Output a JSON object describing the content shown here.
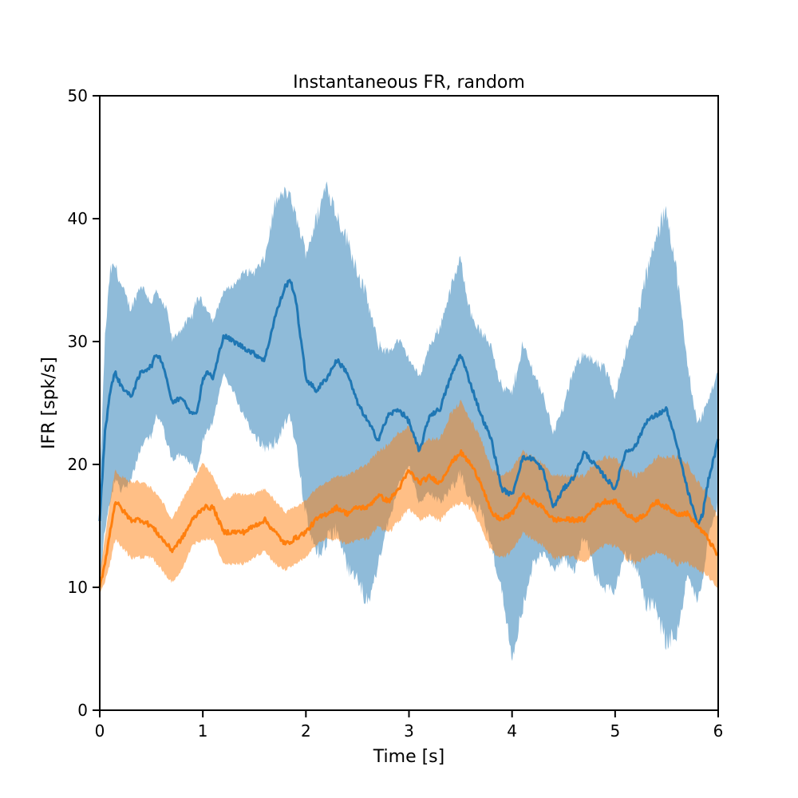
{
  "chart_data": {
    "type": "line",
    "title": "Instantaneous FR, random",
    "xlabel": "Time [s]",
    "ylabel": "IFR [spk/s]",
    "xlim": [
      0,
      6
    ],
    "ylim": [
      0,
      50
    ],
    "xticks": [
      0,
      1,
      2,
      3,
      4,
      5,
      6
    ],
    "yticks": [
      0,
      10,
      20,
      30,
      40,
      50
    ],
    "xtick_labels": [
      "0",
      "1",
      "2",
      "3",
      "4",
      "5",
      "6"
    ],
    "ytick_labels": [
      "0",
      "10",
      "20",
      "30",
      "40",
      "50"
    ],
    "grid": false,
    "legend": "none",
    "series": [
      {
        "color": "#1f77b4",
        "band_color": "#1f77b4",
        "band_opacity": 0.5,
        "x": [
          0,
          0.05,
          0.1,
          0.15,
          0.2,
          0.3,
          0.4,
          0.5,
          0.55,
          0.6,
          0.65,
          0.7,
          0.8,
          0.9,
          0.95,
          1.0,
          1.05,
          1.1,
          1.2,
          1.3,
          1.4,
          1.5,
          1.6,
          1.7,
          1.8,
          1.85,
          1.9,
          2.0,
          2.1,
          2.2,
          2.3,
          2.4,
          2.5,
          2.6,
          2.7,
          2.8,
          2.9,
          3.0,
          3.1,
          3.2,
          3.3,
          3.4,
          3.5,
          3.6,
          3.7,
          3.8,
          3.9,
          4.0,
          4.1,
          4.2,
          4.3,
          4.4,
          4.5,
          4.6,
          4.7,
          4.8,
          4.9,
          5.0,
          5.1,
          5.2,
          5.3,
          5.4,
          5.5,
          5.6,
          5.7,
          5.8,
          5.85,
          5.9,
          6.0
        ],
        "mean": [
          15.5,
          22.5,
          26.0,
          27.5,
          26.5,
          25.5,
          27.5,
          28.0,
          29.0,
          28.5,
          27.0,
          25.0,
          25.5,
          24.0,
          24.5,
          27.0,
          27.5,
          27.0,
          30.5,
          30.0,
          29.5,
          29.0,
          28.5,
          32.0,
          34.5,
          35.0,
          33.5,
          27.0,
          26.0,
          27.0,
          28.5,
          27.5,
          25.0,
          23.5,
          22.0,
          24.0,
          24.5,
          23.5,
          21.0,
          24.0,
          24.5,
          27.0,
          29.0,
          26.5,
          24.0,
          22.0,
          18.0,
          17.5,
          20.5,
          20.5,
          19.5,
          16.5,
          18.0,
          19.0,
          21.0,
          20.0,
          19.0,
          18.0,
          21.0,
          21.5,
          23.5,
          24.0,
          24.5,
          21.5,
          18.0,
          15.0,
          16.0,
          18.5,
          22.0
        ],
        "lower": [
          10.0,
          15.0,
          17.0,
          19.0,
          18.0,
          19.0,
          21.5,
          22.5,
          24.0,
          23.5,
          22.0,
          20.5,
          21.0,
          20.0,
          19.5,
          22.0,
          23.0,
          23.5,
          27.5,
          26.0,
          24.0,
          22.5,
          21.5,
          22.0,
          23.5,
          24.0,
          22.0,
          16.0,
          13.0,
          14.0,
          15.0,
          12.0,
          11.0,
          9.0,
          12.0,
          15.5,
          18.5,
          20.0,
          17.0,
          18.0,
          17.0,
          18.0,
          19.5,
          17.0,
          16.5,
          13.5,
          10.0,
          4.5,
          8.5,
          12.0,
          13.0,
          11.5,
          12.5,
          11.5,
          14.5,
          11.5,
          10.0,
          10.0,
          13.0,
          12.0,
          9.0,
          8.5,
          6.0,
          6.5,
          11.0,
          9.0,
          11.0,
          14.0,
          17.0
        ],
        "upper": [
          18.0,
          30.0,
          35.5,
          36.0,
          34.5,
          32.5,
          34.5,
          33.0,
          34.0,
          33.0,
          32.5,
          30.0,
          31.0,
          32.0,
          33.5,
          33.0,
          32.5,
          31.5,
          34.0,
          34.5,
          35.5,
          35.5,
          36.5,
          41.0,
          42.0,
          41.5,
          40.0,
          37.0,
          39.5,
          42.5,
          40.0,
          38.0,
          35.5,
          33.0,
          29.5,
          29.0,
          30.0,
          28.5,
          27.0,
          29.5,
          31.0,
          34.0,
          36.5,
          32.0,
          30.5,
          29.5,
          26.0,
          25.5,
          29.5,
          27.5,
          25.5,
          22.5,
          24.5,
          27.5,
          29.0,
          28.0,
          27.5,
          25.5,
          29.0,
          31.0,
          35.0,
          38.0,
          40.5,
          35.0,
          28.0,
          23.0,
          24.0,
          25.0,
          27.5
        ]
      },
      {
        "color": "#ff7f0e",
        "band_color": "#ff7f0e",
        "band_opacity": 0.5,
        "x": [
          0,
          0.05,
          0.1,
          0.15,
          0.2,
          0.3,
          0.4,
          0.5,
          0.6,
          0.7,
          0.8,
          0.9,
          1.0,
          1.1,
          1.2,
          1.3,
          1.4,
          1.5,
          1.6,
          1.7,
          1.8,
          1.9,
          2.0,
          2.1,
          2.2,
          2.3,
          2.4,
          2.5,
          2.6,
          2.7,
          2.8,
          2.9,
          3.0,
          3.1,
          3.2,
          3.3,
          3.4,
          3.5,
          3.6,
          3.7,
          3.8,
          3.9,
          4.0,
          4.1,
          4.2,
          4.3,
          4.4,
          4.5,
          4.6,
          4.7,
          4.8,
          4.9,
          5.0,
          5.1,
          5.2,
          5.3,
          5.4,
          5.5,
          5.6,
          5.7,
          5.8,
          5.9,
          6.0
        ],
        "mean": [
          10.0,
          12.0,
          14.5,
          17.0,
          16.5,
          15.5,
          15.5,
          15.0,
          14.0,
          13.0,
          14.0,
          15.5,
          16.5,
          16.5,
          14.5,
          14.5,
          14.5,
          15.0,
          15.5,
          14.5,
          13.5,
          14.0,
          14.5,
          15.5,
          16.0,
          16.5,
          16.0,
          16.5,
          16.5,
          17.5,
          17.0,
          18.0,
          19.5,
          18.5,
          19.0,
          18.5,
          20.0,
          21.0,
          20.0,
          18.5,
          16.0,
          15.5,
          16.0,
          17.5,
          17.0,
          16.5,
          15.5,
          15.5,
          15.5,
          15.5,
          16.5,
          17.0,
          17.0,
          16.0,
          15.5,
          16.0,
          17.0,
          16.5,
          16.0,
          16.0,
          15.0,
          14.0,
          12.5
        ],
        "lower": [
          9.5,
          10.5,
          12.0,
          14.0,
          13.5,
          12.5,
          12.5,
          12.5,
          11.5,
          10.5,
          11.5,
          13.5,
          14.0,
          14.0,
          12.0,
          12.0,
          12.0,
          12.5,
          13.0,
          12.0,
          11.5,
          12.0,
          12.5,
          13.5,
          14.0,
          14.0,
          13.5,
          14.0,
          14.0,
          15.0,
          14.5,
          15.5,
          16.5,
          15.5,
          16.0,
          15.5,
          16.5,
          17.0,
          16.5,
          15.0,
          13.0,
          12.5,
          13.0,
          14.5,
          14.0,
          13.5,
          12.5,
          12.5,
          12.5,
          12.0,
          13.0,
          13.5,
          13.5,
          12.5,
          12.0,
          12.5,
          13.0,
          12.5,
          12.0,
          12.0,
          11.5,
          11.0,
          10.0
        ],
        "upper": [
          11.0,
          14.0,
          17.0,
          19.5,
          19.0,
          18.5,
          18.5,
          18.0,
          17.0,
          15.5,
          17.0,
          18.5,
          20.0,
          19.0,
          17.0,
          17.5,
          17.5,
          17.5,
          18.0,
          17.0,
          16.0,
          16.5,
          17.0,
          18.0,
          18.5,
          19.0,
          19.0,
          19.5,
          20.0,
          21.0,
          21.5,
          22.5,
          23.0,
          21.5,
          22.0,
          22.0,
          24.0,
          25.0,
          23.5,
          22.0,
          19.5,
          19.0,
          19.5,
          21.0,
          20.5,
          20.0,
          19.0,
          19.0,
          19.0,
          19.0,
          20.0,
          20.5,
          20.5,
          19.5,
          19.0,
          19.5,
          20.5,
          20.5,
          20.5,
          20.0,
          18.5,
          17.5,
          15.5
        ]
      }
    ]
  }
}
